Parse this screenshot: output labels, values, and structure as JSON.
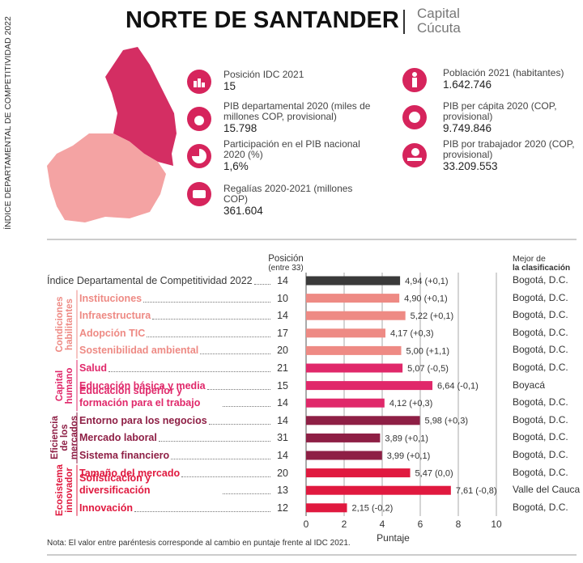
{
  "header": {
    "side_label": "ÍNDICE DEPARTAMENTAL DE COMPETITIVIDAD 2022",
    "title": "NORTE DE SANTANDER",
    "capital_label": "Capital",
    "capital": "Cúcuta"
  },
  "indicators": {
    "left": [
      {
        "label": "Posición IDC 2021",
        "value": "15"
      },
      {
        "label": "PIB departamental 2020 (miles de millones COP, provisional)",
        "value": "15.798"
      },
      {
        "label": "Participación en el PIB nacional 2020 (%)",
        "value": "1,6%"
      },
      {
        "label": "Regalías 2020-2021 (millones COP)",
        "value": "361.604"
      }
    ],
    "right": [
      {
        "label": "Población 2021 (habitantes)",
        "value": "1.642.746"
      },
      {
        "label": "PIB per cápita 2020 (COP, provisional)",
        "value": "9.749.846"
      },
      {
        "label": "PIB por trabajador 2020 (COP, provisional)",
        "value": "33.209.553"
      }
    ]
  },
  "chart_data": {
    "type": "bar",
    "position_header": "Posición",
    "position_subheader": "(entre 33)",
    "best_header": "Mejor de",
    "best_subheader": "la clasificación",
    "x_label": "Puntaje",
    "xlim": [
      0,
      10
    ],
    "xticks": [
      0,
      2,
      4,
      6,
      8,
      10
    ],
    "grid": true,
    "note": "Nota: El valor entre paréntesis corresponde al cambio en puntaje frente al IDC 2021.",
    "overall": {
      "category": "Índice Departamental de Competitividad 2022",
      "position": 14,
      "value": 4.94,
      "value_label": "4,94 (+0,1)",
      "best": "Bogotá, D.C.",
      "color": "#3a3a3a"
    },
    "groups": [
      {
        "name": "Condiciones habilitantes",
        "color": "#ee8a84",
        "rows": [
          {
            "category": "Instituciones",
            "position": 10,
            "value": 4.9,
            "value_label": "4,90 (+0,1)",
            "best": "Bogotá, D.C."
          },
          {
            "category": "Infraestructura",
            "position": 14,
            "value": 5.22,
            "value_label": "5,22 (+0,1)",
            "best": "Bogotá, D.C."
          },
          {
            "category": "Adopción TIC",
            "position": 17,
            "value": 4.17,
            "value_label": "4,17 (+0,3)",
            "best": "Bogotá, D.C."
          },
          {
            "category": "Sostenibilidad ambiental",
            "position": 20,
            "value": 5.0,
            "value_label": "5,00 (+1,1)",
            "best": "Bogotá, D.C."
          }
        ]
      },
      {
        "name": "Capital humano",
        "color": "#e0286a",
        "rows": [
          {
            "category": "Salud",
            "position": 21,
            "value": 5.07,
            "value_label": "5,07 (-0,5)",
            "best": "Bogotá, D.C."
          },
          {
            "category": "Educación básica y media",
            "position": 15,
            "value": 6.64,
            "value_label": "6,64 (-0,1)",
            "best": "Boyacá"
          },
          {
            "category": "Educación superior y formación para el trabajo",
            "position": 14,
            "value": 4.12,
            "value_label": "4,12 (+0,3)",
            "best": "Bogotá, D.C."
          }
        ]
      },
      {
        "name": "Eficiencia de los mercados",
        "color": "#8e1f45",
        "rows": [
          {
            "category": "Entorno para los negocios",
            "position": 14,
            "value": 5.98,
            "value_label": "5,98 (+0,3)",
            "best": "Bogotá, D.C."
          },
          {
            "category": "Mercado laboral",
            "position": 31,
            "value": 3.89,
            "value_label": "3,89 (+0,1)",
            "best": "Bogotá, D.C."
          },
          {
            "category": "Sistema financiero",
            "position": 14,
            "value": 3.99,
            "value_label": "3,99 (+0,1)",
            "best": "Bogotá, D.C."
          }
        ]
      },
      {
        "name": "Ecosistema innovador",
        "color": "#e0193f",
        "rows": [
          {
            "category": "Tamaño del mercado",
            "position": 20,
            "value": 5.47,
            "value_label": "5,47 (0,0)",
            "best": "Bogotá, D.C."
          },
          {
            "category": "Sofisticación y diversificación",
            "position": 13,
            "value": 7.61,
            "value_label": "7,61 (-0,8)",
            "best": "Valle del Cauca"
          },
          {
            "category": "Innovación",
            "position": 12,
            "value": 2.15,
            "value_label": "2,15 (-0,2)",
            "best": "Bogotá, D.C."
          }
        ]
      }
    ]
  }
}
